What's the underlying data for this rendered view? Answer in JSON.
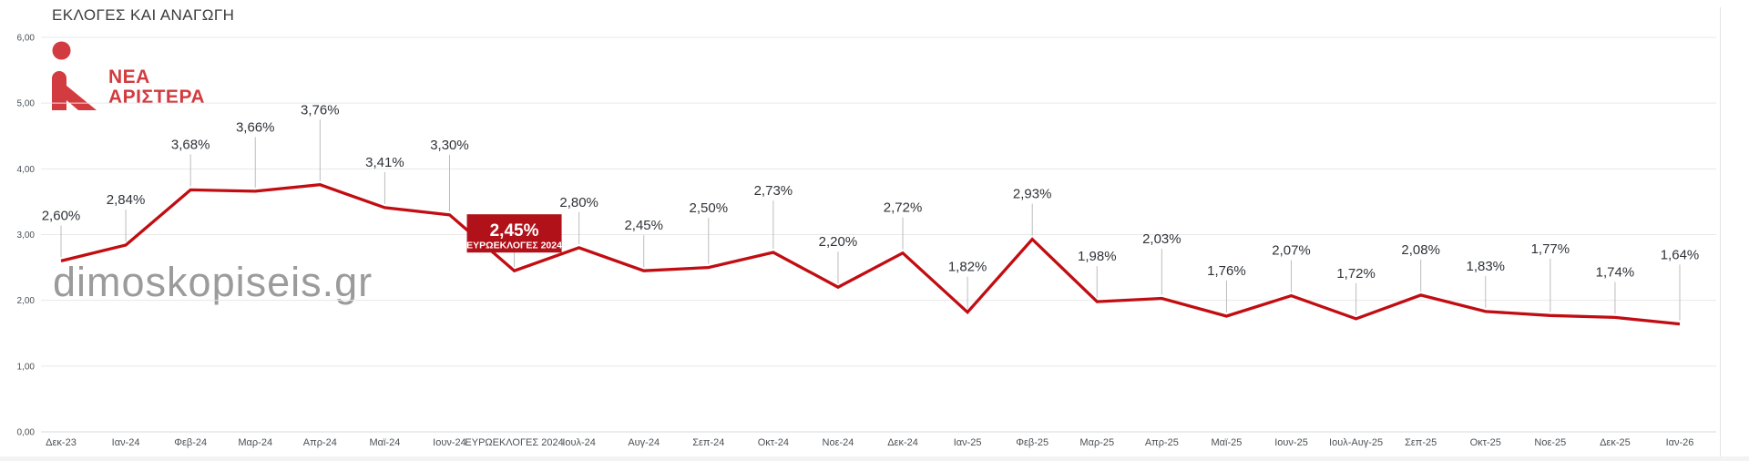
{
  "header": {
    "title": "ΕΚΛΟΓΕΣ ΚΑΙ ΑΝΑΓΩΓΗ"
  },
  "logo": {
    "line1": "ΝΕΑ",
    "line2": "ΑΡΙΣΤΕΡΑ",
    "color": "#d23b3f",
    "icon": "person-figure-icon"
  },
  "watermark": {
    "text": "dimoskopiseis.gr",
    "color": "#9b9b9b"
  },
  "chart_data": {
    "type": "line",
    "title": "ΕΚΛΟΓΕΣ ΚΑΙ ΑΝΑΓΩΓΗ",
    "series_name": "ΝΕΑ ΑΡΙΣΤΕΡΑ",
    "categories": [
      "Δεκ-23",
      "Ιαν-24",
      "Φεβ-24",
      "Μαρ-24",
      "Απρ-24",
      "Μαϊ-24",
      "Ιουν-24",
      "ΕΥΡΩΕΚΛΟΓΕΣ 2024",
      "Ιουλ-24",
      "Αυγ-24",
      "Σεπ-24",
      "Οκτ-24",
      "Νοε-24",
      "Δεκ-24",
      "Ιαν-25",
      "Φεβ-25",
      "Μαρ-25",
      "Απρ-25",
      "Μαϊ-25",
      "Ιουν-25",
      "Ιουλ-Αυγ-25",
      "Σεπ-25",
      "Οκτ-25",
      "Νοε-25",
      "Δεκ-25",
      "Ιαν-26"
    ],
    "values": [
      2.6,
      2.84,
      3.68,
      3.66,
      3.76,
      3.41,
      3.3,
      2.45,
      2.8,
      2.45,
      2.5,
      2.73,
      2.2,
      2.72,
      1.82,
      2.93,
      1.98,
      2.03,
      1.76,
      2.07,
      1.72,
      2.08,
      1.83,
      1.77,
      1.74,
      1.64
    ],
    "labels": [
      "2,60%",
      "2,84%",
      "3,68%",
      "3,66%",
      "3,76%",
      "3,41%",
      "3,30%",
      "2,45%",
      "2,80%",
      "2,45%",
      "2,50%",
      "2,73%",
      "2,20%",
      "2,72%",
      "1,82%",
      "2,93%",
      "1,98%",
      "2,03%",
      "1,76%",
      "2,07%",
      "1,72%",
      "2,08%",
      "1,83%",
      "1,77%",
      "1,74%",
      "1,64%"
    ],
    "highlight": {
      "index": 7,
      "label": "2,45%",
      "sublabel": "ΕΥΡΩΕΚΛΟΓΕΣ 2024",
      "box_color": "#b11119",
      "text_color": "#ffffff"
    },
    "ylim": [
      0,
      6
    ],
    "yticks": [
      "0,00",
      "1,00",
      "2,00",
      "3,00",
      "4,00",
      "5,00",
      "6,00"
    ],
    "grid": true,
    "legend": "none",
    "line_color": "#c10d12",
    "grid_color": "#e8e8e8",
    "zero_line_color": "#d9d9d9",
    "axis_text_color": "#4c5156",
    "value_label_color": "#2f3338",
    "leader_color": "#bcbcbc"
  }
}
